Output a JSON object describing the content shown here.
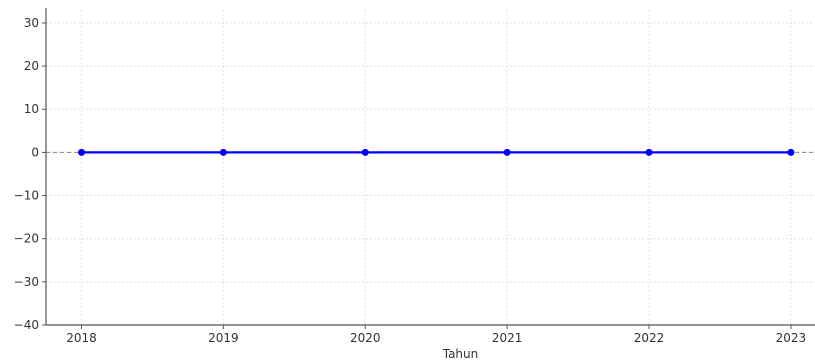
{
  "chart_data": {
    "type": "line",
    "title": "",
    "xlabel": "Tahun",
    "ylabel": "",
    "x": [
      2018,
      2019,
      2020,
      2021,
      2022,
      2023
    ],
    "series": [
      {
        "values": [
          0,
          0,
          0,
          0,
          0,
          0
        ],
        "color": "#0000ff"
      }
    ],
    "xlim": [
      2017.75,
      2023.17
    ],
    "ylim": [
      -40,
      33
    ],
    "yticks": [
      -40,
      -30,
      -20,
      -10,
      0,
      10,
      20,
      30
    ],
    "ytick_labels": [
      "−40",
      "−30",
      "−20",
      "−10",
      "0",
      "10",
      "20",
      "30"
    ],
    "xtick_labels": [
      "2018",
      "2019",
      "2020",
      "2021",
      "2022",
      "2023"
    ],
    "grid": true,
    "reference_line": {
      "y": 0,
      "style": "dashed",
      "color": "#888888"
    }
  }
}
